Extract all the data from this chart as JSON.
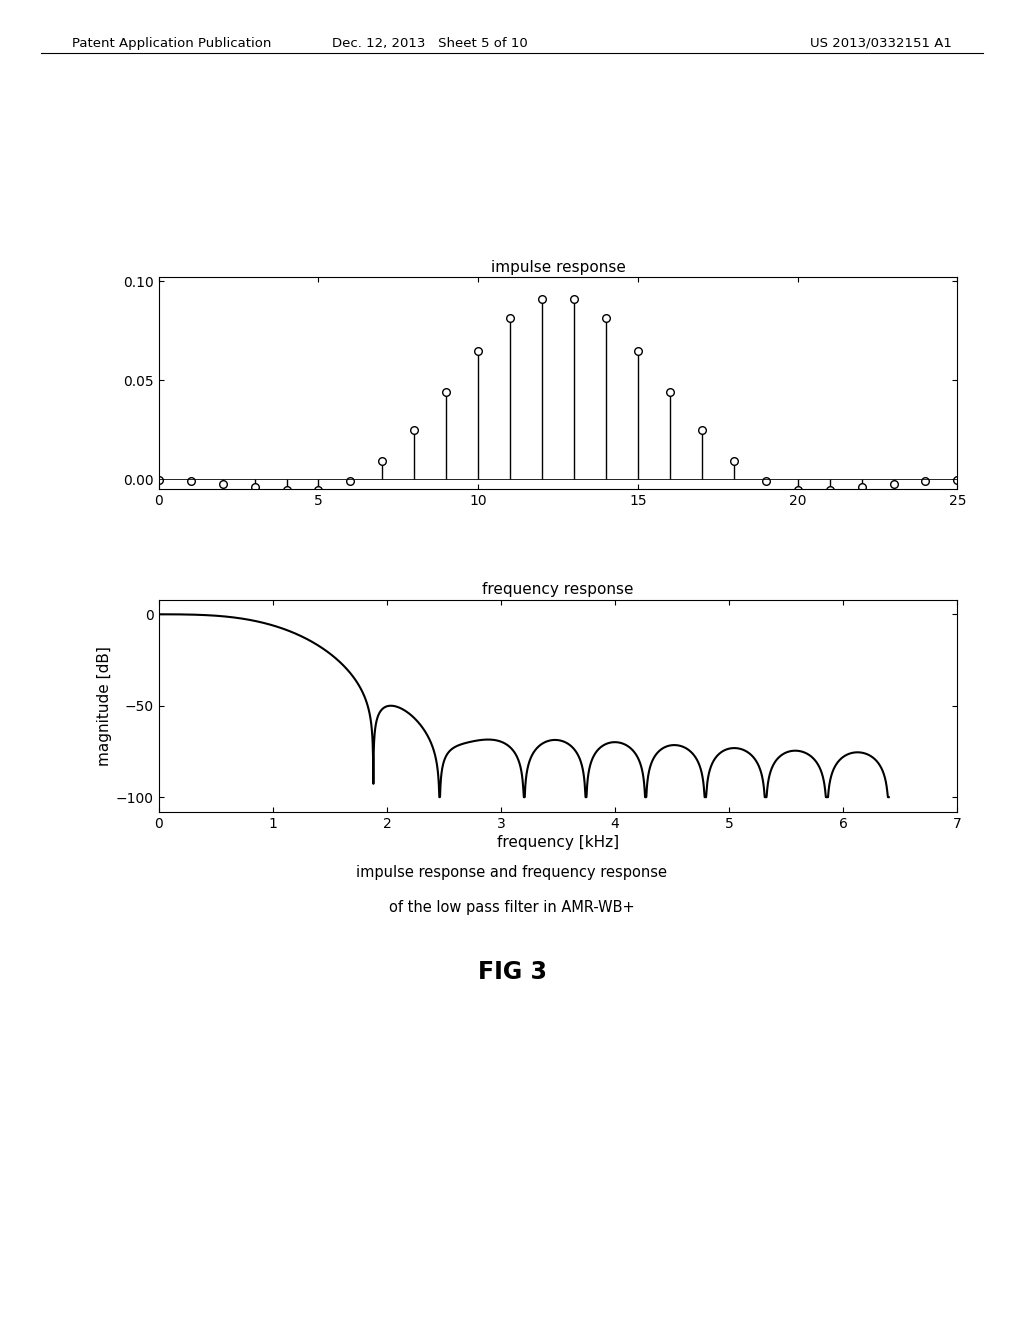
{
  "impulse_title": "impulse response",
  "frequency_title": "frequency response",
  "freq_xlabel": "frequency [kHz]",
  "freq_ylabel": "magnitude [dB]",
  "impulse_xlim": [
    0,
    25
  ],
  "impulse_ylim_low": -0.005,
  "impulse_ylim_high": 0.102,
  "impulse_yticks": [
    0,
    0.05,
    0.1
  ],
  "impulse_xticks": [
    0,
    5,
    10,
    15,
    20,
    25
  ],
  "freq_xlim": [
    0,
    7
  ],
  "freq_ylim_low": -108,
  "freq_ylim_high": 8,
  "freq_yticks": [
    -100,
    -50,
    0
  ],
  "freq_xticks": [
    0,
    1,
    2,
    3,
    4,
    5,
    6,
    7
  ],
  "header_left": "Patent Application Publication",
  "header_center": "Dec. 12, 2013   Sheet 5 of 10",
  "header_right": "US 2013/0332151 A1",
  "caption_line1": "impulse response and frequency response",
  "caption_line2": "of the low pass filter in AMR-WB+",
  "fig_label": "FIG 3",
  "background_color": "#ffffff",
  "line_color": "#000000"
}
